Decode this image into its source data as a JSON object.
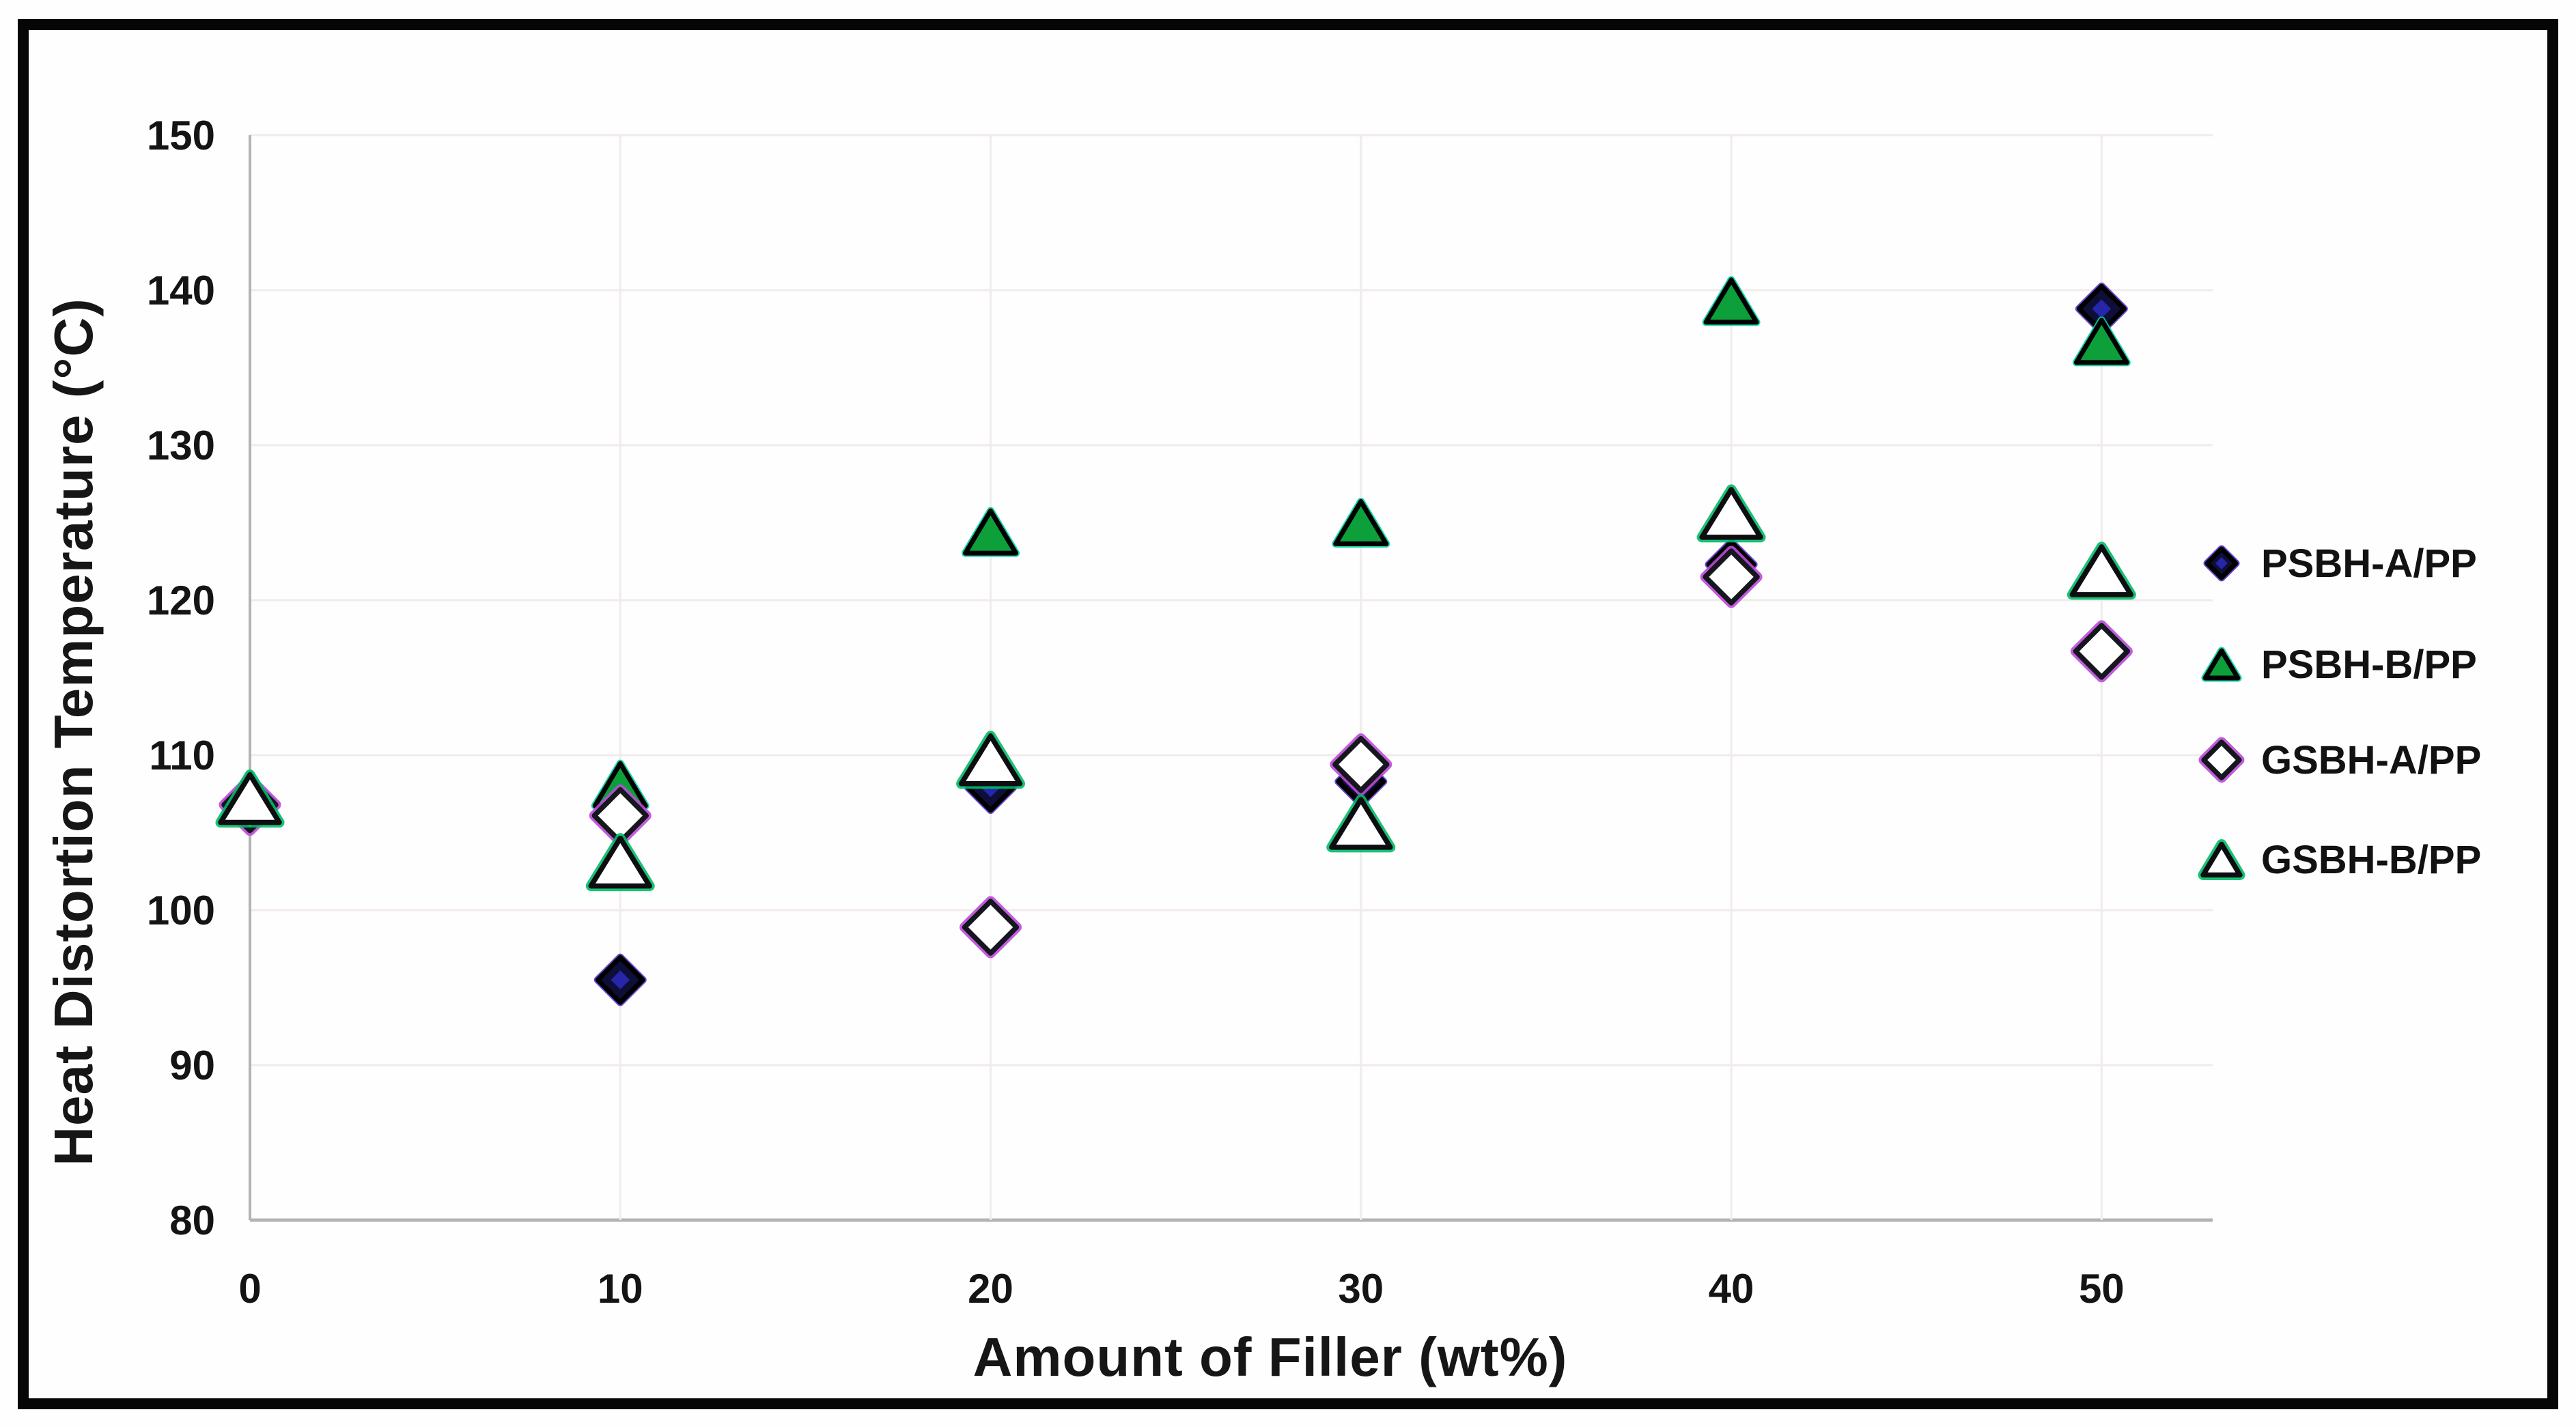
{
  "figure": {
    "xlabel": "Amount of Filler (wt%)",
    "ylabel": "Heat Distortion Temperature (°C)"
  },
  "chart_data": {
    "type": "scatter",
    "title": "",
    "xlabel": "Amount of Filler (wt%)",
    "ylabel": "Heat Distortion Temperature (°C)",
    "xlim": [
      0,
      53
    ],
    "ylim": [
      80,
      150
    ],
    "x_ticks": [
      0,
      10,
      20,
      30,
      40,
      50
    ],
    "y_ticks": [
      80,
      90,
      100,
      110,
      120,
      130,
      140,
      150
    ],
    "grid": true,
    "legend_position": "right",
    "grid_color": "#f1ebeb",
    "axis_color": "#b7b2b2",
    "x": [
      0,
      10,
      20,
      30,
      40,
      50
    ],
    "series": [
      {
        "name": "PSBH-A/PP",
        "marker": "diamond",
        "filled": true,
        "fill": "#0e0e38",
        "edge": "#000000",
        "fringe": "#5b35cc",
        "glint": "#2a2ac0",
        "values": [
          107.0,
          95.5,
          107.9,
          108.3,
          122.3,
          138.8
        ]
      },
      {
        "name": "PSBH-B/PP",
        "marker": "triangle",
        "filled": true,
        "fill": "#0da03a",
        "edge": "#000000",
        "fringe": "#00d2a0",
        "values": [
          107.4,
          108.1,
          124.4,
          125.0,
          139.3,
          136.7
        ]
      },
      {
        "name": "GSBH-A/PP",
        "marker": "diamond",
        "filled": false,
        "fill": "#ffffff",
        "edge": "#16161e",
        "fringe": "#bb4ad8",
        "values": [
          106.8,
          106.1,
          98.9,
          109.4,
          121.5,
          116.7
        ]
      },
      {
        "name": "GSBH-B/PP",
        "marker": "triangle",
        "filled": false,
        "fill": "#ffffff",
        "edge": "#0d0d12",
        "fringe": "#00bb66",
        "values": [
          107.2,
          103.1,
          109.7,
          105.6,
          125.6,
          121.9
        ]
      }
    ]
  }
}
